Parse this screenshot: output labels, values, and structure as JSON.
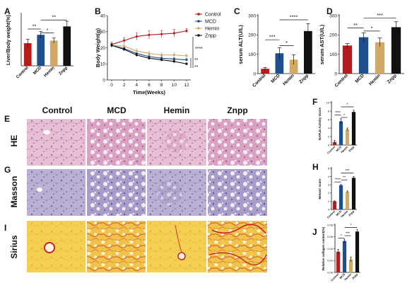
{
  "colors": {
    "control": "#b71c1c",
    "mcd": "#1f4e8c",
    "hemin": "#d2a964",
    "znpp": "#111111",
    "he_tissue": "#dfb0c8",
    "masson_tissue": "#b2a7cb",
    "sirius_tissue": "#f2cc4a"
  },
  "panel_letters": {
    "A": "A",
    "B": "B",
    "C": "C",
    "D": "D",
    "E": "E",
    "F": "F",
    "G": "G",
    "H": "H",
    "I": "I",
    "J": "J"
  },
  "micrograph_columns": [
    "Control",
    "MCD",
    "Hemin",
    "Znpp"
  ],
  "stain_rows": [
    "HE",
    "Masson",
    "Sirius"
  ],
  "chart_data": [
    {
      "panel": "A",
      "type": "bar",
      "categories": [
        "Control",
        "MCD",
        "Hemin",
        "Znpp"
      ],
      "values": [
        4.75,
        5.4,
        4.95,
        6.05
      ],
      "errors": [
        0.3,
        0.25,
        0.2,
        0.4
      ],
      "ylabel": "Liver/Body weight(%)",
      "ylim": [
        3,
        7
      ],
      "y_ticks": [],
      "significance": [
        {
          "from": 0,
          "to": 1,
          "label": "**",
          "level": 5.85
        },
        {
          "from": 1,
          "to": 2,
          "label": "*",
          "level": 5.55
        },
        {
          "from": 1,
          "to": 3,
          "label": "**",
          "level": 6.55
        }
      ]
    },
    {
      "panel": "B",
      "type": "line",
      "x": [
        0,
        2,
        4,
        6,
        8,
        10,
        12
      ],
      "xlabel": "Time(Weeks)",
      "ylabel": "Body Weight(g)",
      "ylim": [
        0,
        40
      ],
      "y_ticks": [
        0,
        10,
        20,
        30,
        40
      ],
      "series": [
        {
          "name": "Control",
          "values": [
            22,
            24.5,
            27,
            28,
            28.5,
            29,
            30.5
          ],
          "errors": [
            1.5,
            1.8,
            2.2,
            2.6,
            2.2,
            2.4,
            1.4
          ]
        },
        {
          "name": "MCD",
          "values": [
            21.5,
            19.5,
            16.5,
            14.5,
            13.5,
            13,
            12.5
          ],
          "errors": [
            1.2,
            1,
            1.2,
            1,
            1,
            0.9,
            0.8
          ]
        },
        {
          "name": "Hemin",
          "values": [
            21.5,
            21,
            18,
            16.5,
            15.5,
            15.5,
            15
          ],
          "errors": [
            1.2,
            1.2,
            1.4,
            1.2,
            1.2,
            1.2,
            1
          ]
        },
        {
          "name": "Znpp",
          "values": [
            21.5,
            19,
            15.5,
            13.5,
            12.5,
            11.5,
            10
          ],
          "errors": [
            1.2,
            1,
            1,
            0.9,
            0.8,
            0.8,
            0.6
          ]
        }
      ],
      "significance_labels": [
        "****",
        "**",
        "**"
      ]
    },
    {
      "panel": "C",
      "type": "bar",
      "categories": [
        "Control",
        "MCD",
        "Hemin",
        "Znpp"
      ],
      "values": [
        25,
        105,
        72,
        220
      ],
      "errors": [
        6,
        28,
        25,
        38
      ],
      "ylabel": "serum ALT(U/L)",
      "ylim": [
        0,
        300
      ],
      "y_ticks": [
        0,
        100,
        200,
        300
      ],
      "significance": [
        {
          "from": 0,
          "to": 1,
          "label": "***",
          "level": 175
        },
        {
          "from": 1,
          "to": 2,
          "label": "*",
          "level": 145
        },
        {
          "from": 1,
          "to": 3,
          "label": "****",
          "level": 278
        }
      ]
    },
    {
      "panel": "D",
      "type": "bar",
      "categories": [
        "Control",
        "MCD",
        "Hemin",
        "Znpp"
      ],
      "values": [
        145,
        188,
        162,
        240
      ],
      "errors": [
        10,
        22,
        22,
        28
      ],
      "ylabel": "serum AST(U/L)",
      "ylim": [
        0,
        300
      ],
      "y_ticks": [
        0,
        100,
        200,
        300
      ],
      "significance": [
        {
          "from": 0,
          "to": 1,
          "label": "**",
          "level": 236
        },
        {
          "from": 1,
          "to": 2,
          "label": "*",
          "level": 220
        },
        {
          "from": 1,
          "to": 3,
          "label": "***",
          "level": 287
        }
      ]
    },
    {
      "panel": "F",
      "type": "bar",
      "categories": [
        "Control",
        "MCD",
        "Hemin",
        "Znpp"
      ],
      "values": [
        0.7,
        5.6,
        3.7,
        7.8
      ],
      "errors": [
        0.4,
        0.6,
        0.3,
        0.4
      ],
      "ylabel": "NAFLD Activity Score",
      "ylim": [
        0,
        10
      ],
      "y_ticks": [
        0,
        2,
        4,
        6,
        8,
        10
      ],
      "significance": [
        {
          "from": 0,
          "to": 1,
          "label": "****",
          "level": 7.1
        },
        {
          "from": 1,
          "to": 2,
          "label": "*",
          "level": 6.5
        },
        {
          "from": 1,
          "to": 3,
          "label": "*",
          "level": 9.0
        }
      ]
    },
    {
      "panel": "H",
      "type": "bar",
      "categories": [
        "Control",
        "MCD",
        "Hemin",
        "Znpp"
      ],
      "values": [
        1.0,
        2.95,
        2.15,
        3.85
      ],
      "errors": [
        0.05,
        0.1,
        0.1,
        0.15
      ],
      "ylabel": "Metavir score",
      "ylim": [
        0,
        5
      ],
      "y_ticks": [
        0,
        1,
        2,
        3,
        4,
        5
      ],
      "significance": [
        {
          "from": 0,
          "to": 1,
          "label": "****",
          "level": 3.35
        },
        {
          "from": 1,
          "to": 2,
          "label": "**",
          "level": 3.6
        },
        {
          "from": 1,
          "to": 3,
          "label": "***",
          "level": 4.45
        }
      ]
    },
    {
      "panel": "J",
      "type": "bar",
      "categories": [
        "Control",
        "MCD",
        "Hemin",
        "Znpp"
      ],
      "values": [
        0.035,
        0.053,
        0.022,
        0.069
      ],
      "errors": [
        0.004,
        0.003,
        0.004,
        0.003
      ],
      "ylabel": "Relative collagen content(%)",
      "ylim": [
        0,
        0.08
      ],
      "y_ticks": [
        0,
        0.02,
        0.04,
        0.06,
        0.08
      ],
      "y_tick_labels": [
        "0.00",
        "0.02",
        "0.04",
        "0.06",
        "0.08"
      ],
      "significance": [
        {
          "from": 0,
          "to": 1,
          "label": "*",
          "level": 0.058
        },
        {
          "from": 1,
          "to": 2,
          "label": "***",
          "level": 0.062
        },
        {
          "from": 1,
          "to": 3,
          "label": "*",
          "level": 0.076
        }
      ]
    }
  ]
}
